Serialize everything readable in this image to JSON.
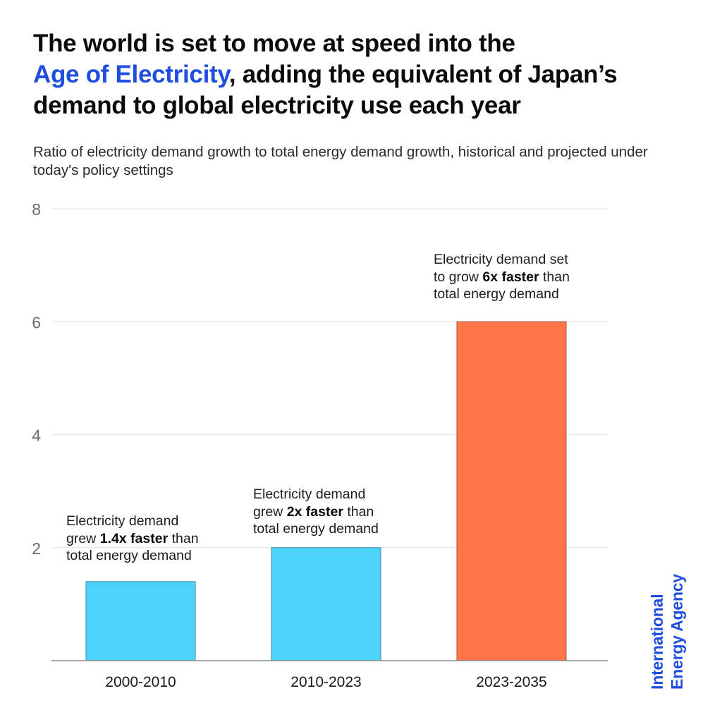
{
  "title": {
    "line1": "The world is set to move at speed into the",
    "highlight": "Age of Electricity",
    "line2_rest": ", adding the equivalent of Japan’s",
    "line3": "demand to global electricity use each year",
    "highlight_color": "#1d4ee0"
  },
  "subtitle": "Ratio of electricity demand growth to total energy demand growth, historical and projected under today's policy settings",
  "chart_data": {
    "type": "bar",
    "title": "The world is set to move at speed into the Age of Electricity, adding the equivalent of Japan’s demand to global electricity use each year",
    "subtitle": "Ratio of electricity demand growth to total energy demand growth, historical and projected under today's policy settings",
    "categories": [
      "2000-2010",
      "2010-2023",
      "2023-2035"
    ],
    "values": [
      1.4,
      2.0,
      6.0
    ],
    "colors": [
      "#4dd2fa",
      "#4dd2fa",
      "#ff7548"
    ],
    "xlabel": "",
    "ylabel": "",
    "ylim": [
      0,
      8
    ],
    "yticks": [
      2,
      4,
      6,
      8
    ],
    "grid": true,
    "legend": "none",
    "annotations": [
      {
        "category": "2000-2010",
        "pre": "Electricity demand",
        "mid_pre": "grew ",
        "bold": "1.4x faster",
        "mid_post": " than",
        "post": "total energy demand"
      },
      {
        "category": "2010-2023",
        "pre": "Electricity demand",
        "mid_pre": "grew ",
        "bold": "2x faster",
        "mid_post": " than",
        "post": "total energy demand"
      },
      {
        "category": "2023-2035",
        "pre": "Electricity demand set",
        "mid_pre": "to grow ",
        "bold": "6x faster",
        "mid_post": " than",
        "post": "total energy demand"
      }
    ]
  },
  "source_logo": {
    "line1": "International",
    "line2": "Energy Agency",
    "color": "#1d4ee0"
  }
}
